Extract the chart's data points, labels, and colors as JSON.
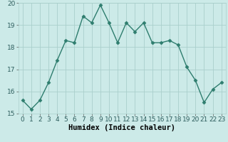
{
  "x": [
    0,
    1,
    2,
    3,
    4,
    5,
    6,
    7,
    8,
    9,
    10,
    11,
    12,
    13,
    14,
    15,
    16,
    17,
    18,
    19,
    20,
    21,
    22,
    23
  ],
  "y": [
    15.6,
    15.2,
    15.6,
    16.4,
    17.4,
    18.3,
    18.2,
    19.4,
    19.1,
    19.9,
    19.1,
    18.2,
    19.1,
    18.7,
    19.1,
    18.2,
    18.2,
    18.3,
    18.1,
    17.1,
    16.5,
    15.5,
    16.1,
    16.4
  ],
  "xlabel": "Humidex (Indice chaleur)",
  "ylim": [
    15,
    20
  ],
  "xlim_min": -0.5,
  "xlim_max": 23.5,
  "yticks": [
    15,
    16,
    17,
    18,
    19,
    20
  ],
  "xticks": [
    0,
    1,
    2,
    3,
    4,
    5,
    6,
    7,
    8,
    9,
    10,
    11,
    12,
    13,
    14,
    15,
    16,
    17,
    18,
    19,
    20,
    21,
    22,
    23
  ],
  "line_color": "#2e7d6e",
  "marker": "D",
  "marker_size": 2.5,
  "bg_color": "#cceae8",
  "grid_color": "#aacfcc",
  "xlabel_fontsize": 7.5,
  "tick_fontsize": 6.5,
  "linewidth": 1.0
}
